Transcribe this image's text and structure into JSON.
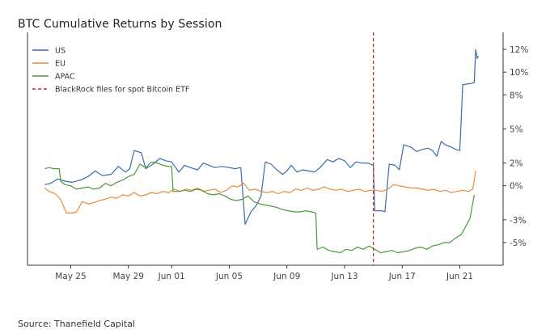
{
  "chart_data": {
    "type": "line",
    "title": "BTC Cumulative Returns by Session",
    "xlabel": "",
    "ylabel": "",
    "x_axis": {
      "unit": "days since May 22",
      "xlim": [
        0,
        33
      ],
      "ticks": [
        {
          "x": 3,
          "label": "May 25"
        },
        {
          "x": 7,
          "label": "May 29"
        },
        {
          "x": 10,
          "label": "Jun 01"
        },
        {
          "x": 14,
          "label": "Jun 05"
        },
        {
          "x": 18,
          "label": "Jun 09"
        },
        {
          "x": 22,
          "label": "Jun 13"
        },
        {
          "x": 26,
          "label": "Jun 17"
        },
        {
          "x": 30,
          "label": "Jun 21"
        }
      ]
    },
    "y_axis": {
      "unit": "percent",
      "ylim": [
        -7,
        13.5
      ],
      "position": "right",
      "ticks": [
        {
          "y": 12,
          "label": "12%"
        },
        {
          "y": 10,
          "label": "10%"
        },
        {
          "y": 8,
          "label": "8%"
        },
        {
          "y": 5,
          "label": "5%"
        },
        {
          "y": 2,
          "label": "2%"
        },
        {
          "y": 0,
          "label": "0%"
        },
        {
          "y": -3,
          "label": "-3%"
        },
        {
          "y": -5,
          "label": "-5%"
        }
      ]
    },
    "grid": false,
    "legend_position": "top-left",
    "series": [
      {
        "name": "US",
        "color": "#3a6ea5",
        "points": [
          [
            1.2,
            0.1
          ],
          [
            1.6,
            0.2
          ],
          [
            2.1,
            0.6
          ],
          [
            2.6,
            0.4
          ],
          [
            3.1,
            0.3
          ],
          [
            3.7,
            0.5
          ],
          [
            4.2,
            0.8
          ],
          [
            4.7,
            1.3
          ],
          [
            5.2,
            0.9
          ],
          [
            5.8,
            1.0
          ],
          [
            6.3,
            1.7
          ],
          [
            6.8,
            1.2
          ],
          [
            7.1,
            1.5
          ],
          [
            7.4,
            3.1
          ],
          [
            7.9,
            2.9
          ],
          [
            8.2,
            1.5
          ],
          [
            8.7,
            1.9
          ],
          [
            9.2,
            2.4
          ],
          [
            9.6,
            2.2
          ],
          [
            10.0,
            2.1
          ],
          [
            10.5,
            1.2
          ],
          [
            10.9,
            1.8
          ],
          [
            11.3,
            1.6
          ],
          [
            11.8,
            1.4
          ],
          [
            12.2,
            2.0
          ],
          [
            12.6,
            1.8
          ],
          [
            13.0,
            1.6
          ],
          [
            13.5,
            1.7
          ],
          [
            14.0,
            1.6
          ],
          [
            14.4,
            1.5
          ],
          [
            14.8,
            1.6
          ],
          [
            15.1,
            -3.4
          ],
          [
            15.5,
            -2.3
          ],
          [
            15.9,
            -1.7
          ],
          [
            16.2,
            -0.9
          ],
          [
            16.5,
            2.1
          ],
          [
            16.9,
            1.9
          ],
          [
            17.3,
            1.4
          ],
          [
            17.7,
            1.0
          ],
          [
            18.0,
            1.3
          ],
          [
            18.3,
            1.8
          ],
          [
            18.7,
            1.2
          ],
          [
            19.1,
            1.4
          ],
          [
            19.5,
            1.3
          ],
          [
            19.9,
            1.2
          ],
          [
            20.3,
            1.6
          ],
          [
            20.8,
            2.3
          ],
          [
            21.2,
            2.1
          ],
          [
            21.6,
            2.4
          ],
          [
            22.0,
            2.2
          ],
          [
            22.4,
            1.6
          ],
          [
            22.8,
            2.1
          ],
          [
            23.2,
            2.0
          ],
          [
            23.6,
            2.0
          ],
          [
            24.0,
            1.8
          ],
          [
            24.1,
            -2.2
          ],
          [
            24.6,
            -2.2
          ],
          [
            24.8,
            -2.3
          ],
          [
            25.1,
            1.9
          ],
          [
            25.5,
            1.8
          ],
          [
            25.8,
            1.4
          ],
          [
            26.1,
            3.6
          ],
          [
            26.6,
            3.4
          ],
          [
            27.0,
            3.0
          ],
          [
            27.4,
            3.2
          ],
          [
            27.8,
            3.3
          ],
          [
            28.1,
            3.1
          ],
          [
            28.4,
            2.6
          ],
          [
            28.7,
            3.9
          ],
          [
            29.0,
            3.6
          ],
          [
            29.4,
            3.4
          ],
          [
            29.7,
            3.2
          ],
          [
            30.0,
            3.1
          ],
          [
            30.2,
            8.9
          ],
          [
            30.8,
            9.0
          ],
          [
            31.0,
            9.1
          ],
          [
            31.1,
            12.0
          ],
          [
            31.2,
            11.2
          ],
          [
            31.3,
            11.4
          ]
        ]
      },
      {
        "name": "EU",
        "color": "#e98a3a",
        "points": [
          [
            1.2,
            -0.2
          ],
          [
            1.5,
            -0.5
          ],
          [
            1.9,
            -0.7
          ],
          [
            2.3,
            -1.2
          ],
          [
            2.7,
            -2.4
          ],
          [
            3.1,
            -2.4
          ],
          [
            3.4,
            -2.3
          ],
          [
            3.8,
            -1.4
          ],
          [
            4.2,
            -1.6
          ],
          [
            4.6,
            -1.5
          ],
          [
            5.0,
            -1.3
          ],
          [
            5.4,
            -1.2
          ],
          [
            5.8,
            -1.0
          ],
          [
            6.2,
            -1.1
          ],
          [
            6.6,
            -0.8
          ],
          [
            7.0,
            -0.9
          ],
          [
            7.4,
            -0.6
          ],
          [
            7.8,
            -0.9
          ],
          [
            8.2,
            -0.8
          ],
          [
            8.6,
            -0.6
          ],
          [
            9.0,
            -0.7
          ],
          [
            9.4,
            -0.5
          ],
          [
            9.8,
            -0.6
          ],
          [
            10.2,
            -0.3
          ],
          [
            10.6,
            -0.5
          ],
          [
            11.0,
            -0.3
          ],
          [
            11.4,
            -0.4
          ],
          [
            11.8,
            -0.2
          ],
          [
            12.2,
            -0.5
          ],
          [
            12.6,
            -0.4
          ],
          [
            13.0,
            -0.3
          ],
          [
            13.4,
            -0.6
          ],
          [
            13.8,
            -0.4
          ],
          [
            14.2,
            0.0
          ],
          [
            14.6,
            -0.1
          ],
          [
            15.0,
            0.2
          ],
          [
            15.4,
            -0.4
          ],
          [
            15.8,
            -0.3
          ],
          [
            16.2,
            -0.5
          ],
          [
            16.6,
            -0.6
          ],
          [
            17.0,
            -0.5
          ],
          [
            17.4,
            -0.7
          ],
          [
            17.8,
            -0.5
          ],
          [
            18.2,
            -0.6
          ],
          [
            18.6,
            -0.3
          ],
          [
            19.0,
            -0.4
          ],
          [
            19.4,
            -0.2
          ],
          [
            19.8,
            -0.4
          ],
          [
            20.2,
            -0.3
          ],
          [
            20.6,
            -0.1
          ],
          [
            21.0,
            -0.3
          ],
          [
            21.4,
            -0.4
          ],
          [
            21.8,
            -0.3
          ],
          [
            22.2,
            -0.5
          ],
          [
            22.6,
            -0.4
          ],
          [
            23.0,
            -0.3
          ],
          [
            23.4,
            -0.5
          ],
          [
            23.8,
            -0.4
          ],
          [
            24.2,
            -0.4
          ],
          [
            24.6,
            -0.5
          ],
          [
            25.0,
            -0.3
          ],
          [
            25.4,
            0.1
          ],
          [
            25.8,
            0.0
          ],
          [
            26.2,
            -0.1
          ],
          [
            26.6,
            -0.2
          ],
          [
            27.0,
            -0.2
          ],
          [
            27.4,
            -0.3
          ],
          [
            27.8,
            -0.4
          ],
          [
            28.2,
            -0.3
          ],
          [
            28.6,
            -0.5
          ],
          [
            29.0,
            -0.4
          ],
          [
            29.4,
            -0.6
          ],
          [
            29.8,
            -0.5
          ],
          [
            30.2,
            -0.4
          ],
          [
            30.6,
            -0.5
          ],
          [
            30.9,
            -0.3
          ],
          [
            31.1,
            1.3
          ]
        ]
      },
      {
        "name": "APAC",
        "color": "#4c9a3a",
        "points": [
          [
            1.2,
            1.5
          ],
          [
            1.5,
            1.6
          ],
          [
            1.8,
            1.5
          ],
          [
            2.2,
            1.5
          ],
          [
            2.3,
            0.4
          ],
          [
            2.6,
            0.1
          ],
          [
            3.0,
            0.0
          ],
          [
            3.4,
            -0.3
          ],
          [
            3.8,
            -0.2
          ],
          [
            4.2,
            -0.1
          ],
          [
            4.6,
            -0.3
          ],
          [
            5.0,
            -0.2
          ],
          [
            5.4,
            0.2
          ],
          [
            5.8,
            0.0
          ],
          [
            6.2,
            0.3
          ],
          [
            6.6,
            0.5
          ],
          [
            7.0,
            0.8
          ],
          [
            7.4,
            1.0
          ],
          [
            7.8,
            1.9
          ],
          [
            8.2,
            1.6
          ],
          [
            8.6,
            2.1
          ],
          [
            9.0,
            2.0
          ],
          [
            9.4,
            1.8
          ],
          [
            9.8,
            1.7
          ],
          [
            10.0,
            1.7
          ],
          [
            10.1,
            -0.5
          ],
          [
            10.5,
            -0.5
          ],
          [
            10.9,
            -0.4
          ],
          [
            11.3,
            -0.5
          ],
          [
            11.7,
            -0.3
          ],
          [
            12.1,
            -0.4
          ],
          [
            12.5,
            -0.7
          ],
          [
            12.9,
            -0.8
          ],
          [
            13.3,
            -0.7
          ],
          [
            13.7,
            -0.9
          ],
          [
            14.1,
            -1.2
          ],
          [
            14.5,
            -1.3
          ],
          [
            14.9,
            -1.2
          ],
          [
            15.3,
            -0.9
          ],
          [
            15.7,
            -1.4
          ],
          [
            16.1,
            -1.6
          ],
          [
            16.5,
            -1.7
          ],
          [
            16.9,
            -1.8
          ],
          [
            17.3,
            -1.9
          ],
          [
            17.7,
            -2.1
          ],
          [
            18.1,
            -2.2
          ],
          [
            18.5,
            -2.3
          ],
          [
            18.9,
            -2.3
          ],
          [
            19.3,
            -2.2
          ],
          [
            19.7,
            -2.3
          ],
          [
            20.0,
            -2.4
          ],
          [
            20.1,
            -5.6
          ],
          [
            20.5,
            -5.4
          ],
          [
            20.9,
            -5.7
          ],
          [
            21.3,
            -5.8
          ],
          [
            21.7,
            -5.9
          ],
          [
            22.1,
            -5.6
          ],
          [
            22.5,
            -5.7
          ],
          [
            22.9,
            -5.4
          ],
          [
            23.3,
            -5.6
          ],
          [
            23.7,
            -5.3
          ],
          [
            24.1,
            -5.6
          ],
          [
            24.5,
            -5.9
          ],
          [
            24.9,
            -5.8
          ],
          [
            25.3,
            -5.7
          ],
          [
            25.7,
            -5.9
          ],
          [
            26.1,
            -5.8
          ],
          [
            26.5,
            -5.7
          ],
          [
            26.9,
            -5.5
          ],
          [
            27.3,
            -5.4
          ],
          [
            27.7,
            -5.6
          ],
          [
            28.1,
            -5.3
          ],
          [
            28.5,
            -5.2
          ],
          [
            28.9,
            -5.0
          ],
          [
            29.3,
            -5.0
          ],
          [
            29.7,
            -4.6
          ],
          [
            30.1,
            -4.3
          ],
          [
            30.4,
            -3.6
          ],
          [
            30.7,
            -2.9
          ],
          [
            30.9,
            -1.5
          ],
          [
            31.0,
            -0.8
          ]
        ]
      }
    ],
    "annotations": [
      {
        "type": "vline",
        "x": 24.0,
        "label": "BlackRock files for spot Bitcoin ETF",
        "color": "#cc2b2b"
      }
    ]
  },
  "legend": [
    {
      "label": "US",
      "color": "#3a6ea5",
      "style": "solid"
    },
    {
      "label": "EU",
      "color": "#e98a3a",
      "style": "solid"
    },
    {
      "label": "APAC",
      "color": "#4c9a3a",
      "style": "solid"
    },
    {
      "label": "BlackRock files for spot Bitcoin ETF",
      "color": "#cc2b2b",
      "style": "dashed"
    }
  ],
  "source": "Source: Thanefield Capital"
}
